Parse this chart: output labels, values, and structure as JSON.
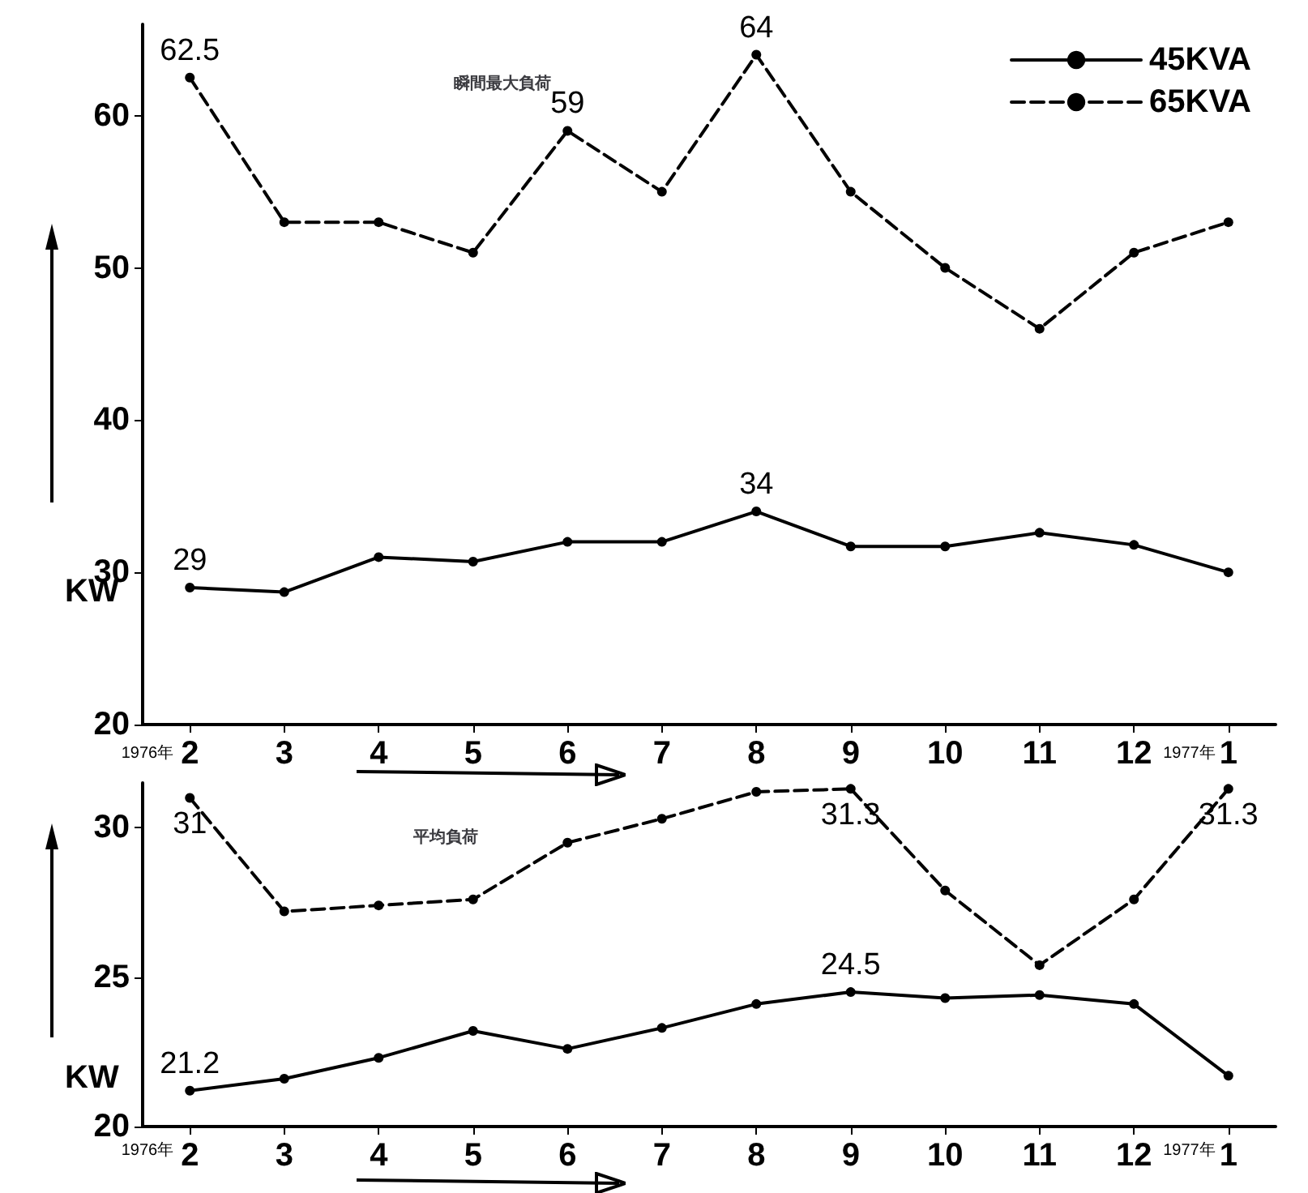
{
  "chart_data": [
    {
      "type": "line",
      "title": "瞬間最大負荷",
      "ylabel": "KW",
      "categories": [
        "2",
        "3",
        "4",
        "5",
        "6",
        "7",
        "8",
        "9",
        "10",
        "11",
        "12",
        "1"
      ],
      "ylim": [
        20,
        66
      ],
      "yticks": [
        20,
        30,
        40,
        50,
        60
      ],
      "grid": false,
      "legend": "top right",
      "marker": "circle",
      "annotations": [
        "1976年",
        "1977年"
      ],
      "series": [
        {
          "name": "45KVA",
          "color": "#000000",
          "line_style": "solid",
          "values": [
            29,
            28.7,
            31,
            30.7,
            32,
            32,
            34,
            31.7,
            31.7,
            32.6,
            31.8,
            30
          ],
          "value_labels": [
            "29",
            null,
            null,
            null,
            null,
            null,
            "34",
            null,
            null,
            null,
            null,
            null
          ]
        },
        {
          "name": "65KVA",
          "color": "#000000",
          "line_style": "dashed",
          "values": [
            62.5,
            53,
            53,
            51,
            59,
            55,
            64,
            55,
            50,
            46,
            51,
            53
          ],
          "value_labels": [
            "62.5",
            null,
            null,
            null,
            "59",
            null,
            "64",
            null,
            null,
            null,
            null,
            null
          ]
        }
      ]
    },
    {
      "type": "line",
      "title": "平均負荷",
      "ylabel": "KW",
      "categories": [
        "2",
        "3",
        "4",
        "5",
        "6",
        "7",
        "8",
        "9",
        "10",
        "11",
        "12",
        "1"
      ],
      "ylim": [
        20,
        31.5
      ],
      "yticks": [
        20,
        25,
        30
      ],
      "grid": false,
      "legend": false,
      "marker": "circle",
      "annotations": [
        "1976年",
        "1977年"
      ],
      "series": [
        {
          "color": "#000000",
          "line_style": "dashed",
          "values": [
            31,
            27.2,
            27.4,
            27.6,
            29.5,
            30.3,
            31.2,
            31.3,
            27.9,
            25.4,
            27.6,
            31.3
          ],
          "value_labels": [
            "31",
            null,
            null,
            null,
            null,
            null,
            null,
            "31.3",
            null,
            null,
            null,
            "31.3"
          ]
        },
        {
          "color": "#000000",
          "line_style": "solid",
          "values": [
            21.2,
            21.6,
            22.3,
            23.2,
            22.6,
            23.3,
            24.1,
            24.5,
            24.3,
            24.4,
            24.1,
            21.7
          ],
          "value_labels": [
            "21.2",
            null,
            null,
            null,
            null,
            null,
            null,
            "24.5",
            null,
            null,
            null,
            null
          ]
        }
      ]
    }
  ]
}
